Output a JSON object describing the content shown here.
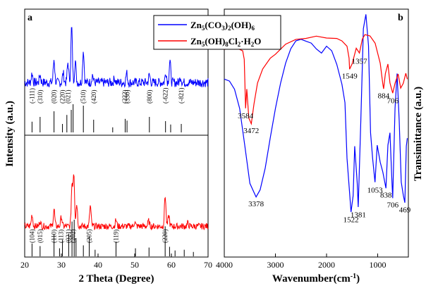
{
  "chart_data": [
    {
      "panel": "a",
      "type": "line",
      "xlabel": "2 Theta (Degree)",
      "ylabel": "Intensity (a.u.)",
      "xlim": [
        20,
        70
      ],
      "x_ticks": [
        20,
        30,
        40,
        50,
        60,
        70
      ],
      "x_tick_labels": [
        "20",
        "30",
        "40",
        "50",
        "60",
        "70"
      ],
      "grid": false,
      "legend_position": "top-right",
      "series": [
        {
          "name": "Zn5(CO3)2(OH)6",
          "color": "#0000ff",
          "baseline": 0.28,
          "peaks": [
            {
              "x": 22.0,
              "h": 0.12
            },
            {
              "x": 24.2,
              "h": 0.1
            },
            {
              "x": 28.0,
              "h": 0.3
            },
            {
              "x": 30.5,
              "h": 0.12
            },
            {
              "x": 31.8,
              "h": 0.26
            },
            {
              "x": 32.8,
              "h": 0.72
            },
            {
              "x": 33.8,
              "h": 0.28
            },
            {
              "x": 36.0,
              "h": 0.42
            },
            {
              "x": 38.5,
              "h": 0.1
            },
            {
              "x": 44.5,
              "h": 0.06
            },
            {
              "x": 47.8,
              "h": 0.12
            },
            {
              "x": 54.0,
              "h": 0.1
            },
            {
              "x": 58.5,
              "h": 0.14
            },
            {
              "x": 59.6,
              "h": 0.28
            },
            {
              "x": 62.5,
              "h": 0.08
            }
          ]
        },
        {
          "name": "Zn5(OH)8Cl2·H2O",
          "color": "#ff0000",
          "baseline": 0.22,
          "peaks": [
            {
              "x": 22.0,
              "h": 0.22
            },
            {
              "x": 24.2,
              "h": 0.1
            },
            {
              "x": 28.0,
              "h": 0.32
            },
            {
              "x": 30.0,
              "h": 0.18
            },
            {
              "x": 32.9,
              "h": 0.78
            },
            {
              "x": 33.4,
              "h": 0.98
            },
            {
              "x": 34.2,
              "h": 0.42
            },
            {
              "x": 37.9,
              "h": 0.38
            },
            {
              "x": 44.9,
              "h": 0.12
            },
            {
              "x": 50.0,
              "h": 0.08
            },
            {
              "x": 53.8,
              "h": 0.1
            },
            {
              "x": 58.3,
              "h": 0.58
            },
            {
              "x": 59.3,
              "h": 0.2
            },
            {
              "x": 64.5,
              "h": 0.06
            }
          ]
        }
      ],
      "reference_lines_carbonate": {
        "ticks": [
          {
            "x": 22.0,
            "h": 0.38
          },
          {
            "x": 24.2,
            "h": 0.55
          },
          {
            "x": 28.0,
            "h": 0.75
          },
          {
            "x": 30.3,
            "h": 0.3
          },
          {
            "x": 31.5,
            "h": 0.62
          },
          {
            "x": 32.7,
            "h": 0.8
          },
          {
            "x": 33.2,
            "h": 1.0
          },
          {
            "x": 36.0,
            "h": 0.95
          },
          {
            "x": 38.8,
            "h": 0.45
          },
          {
            "x": 44.0,
            "h": 0.18
          },
          {
            "x": 47.4,
            "h": 0.48
          },
          {
            "x": 47.9,
            "h": 0.42
          },
          {
            "x": 54.0,
            "h": 0.55
          },
          {
            "x": 58.4,
            "h": 0.4
          },
          {
            "x": 59.8,
            "h": 0.28
          },
          {
            "x": 62.7,
            "h": 0.3
          }
        ],
        "labels": [
          {
            "x": 22.0,
            "text": "(-111)"
          },
          {
            "x": 24.2,
            "text": "(310)"
          },
          {
            "x": 28.0,
            "text": "(020)"
          },
          {
            "x": 30.3,
            "text": "(220)"
          },
          {
            "x": 31.8,
            "text": "(021)"
          },
          {
            "x": 36.0,
            "text": "(510)"
          },
          {
            "x": 38.8,
            "text": "(420)"
          },
          {
            "x": 47.3,
            "text": "(222)"
          },
          {
            "x": 48.0,
            "text": "(330)"
          },
          {
            "x": 54.0,
            "text": "(800)"
          },
          {
            "x": 58.4,
            "text": "(-622)"
          },
          {
            "x": 62.7,
            "text": "(-821)"
          }
        ]
      },
      "reference_lines_chloride": {
        "ticks": [
          {
            "x": 22.0,
            "h": 0.35
          },
          {
            "x": 24.2,
            "h": 0.28
          },
          {
            "x": 28.0,
            "h": 0.6
          },
          {
            "x": 29.5,
            "h": 0.22
          },
          {
            "x": 30.3,
            "h": 0.45
          },
          {
            "x": 32.0,
            "h": 0.62
          },
          {
            "x": 32.9,
            "h": 0.95
          },
          {
            "x": 33.5,
            "h": 1.0
          },
          {
            "x": 34.0,
            "h": 0.5
          },
          {
            "x": 36.0,
            "h": 0.3
          },
          {
            "x": 37.6,
            "h": 0.55
          },
          {
            "x": 39.2,
            "h": 0.18
          },
          {
            "x": 44.9,
            "h": 0.4
          },
          {
            "x": 50.2,
            "h": 0.22
          },
          {
            "x": 53.9,
            "h": 0.24
          },
          {
            "x": 58.3,
            "h": 0.82
          },
          {
            "x": 59.5,
            "h": 0.26
          },
          {
            "x": 61.0,
            "h": 0.16
          },
          {
            "x": 63.5,
            "h": 0.18
          },
          {
            "x": 66.0,
            "h": 0.12
          }
        ],
        "labels": [
          {
            "x": 22.0,
            "text": "(104)"
          },
          {
            "x": 24.2,
            "text": "(015)"
          },
          {
            "x": 28.0,
            "text": "(110)"
          },
          {
            "x": 29.9,
            "text": "(113)"
          },
          {
            "x": 31.9,
            "text": "(021)"
          },
          {
            "x": 33.2,
            "text": "(202)"
          },
          {
            "x": 37.6,
            "text": "(205)"
          },
          {
            "x": 44.9,
            "text": "(119)"
          },
          {
            "x": 58.3,
            "text": "(220)"
          }
        ]
      }
    },
    {
      "panel": "b",
      "type": "line",
      "xlabel": "Wavenumber(cm",
      "xlabel_sup": "-1",
      "xlabel_end": ")",
      "ylabel": "Transimittance (a.u.)",
      "xlim": [
        4000,
        400
      ],
      "x_ticks": [
        4000,
        3000,
        2000,
        1000
      ],
      "x_tick_labels": [
        "4000",
        "3000",
        "2000",
        "1000"
      ],
      "grid": false,
      "series": [
        {
          "name": "Zn5(CO3)2(OH)6",
          "color": "#0000ff",
          "points": [
            [
              4000,
              0.72
            ],
            [
              3900,
              0.71
            ],
            [
              3800,
              0.68
            ],
            [
              3700,
              0.6
            ],
            [
              3600,
              0.45
            ],
            [
              3500,
              0.3
            ],
            [
              3400,
              0.25
            ],
            [
              3378,
              0.245
            ],
            [
              3300,
              0.27
            ],
            [
              3200,
              0.36
            ],
            [
              3100,
              0.48
            ],
            [
              3000,
              0.6
            ],
            [
              2900,
              0.7
            ],
            [
              2800,
              0.78
            ],
            [
              2700,
              0.84
            ],
            [
              2600,
              0.87
            ],
            [
              2500,
              0.88
            ],
            [
              2400,
              0.87
            ],
            [
              2300,
              0.86
            ],
            [
              2200,
              0.84
            ],
            [
              2100,
              0.82
            ],
            [
              2000,
              0.85
            ],
            [
              1900,
              0.83
            ],
            [
              1800,
              0.78
            ],
            [
              1700,
              0.7
            ],
            [
              1640,
              0.62
            ],
            [
              1600,
              0.4
            ],
            [
              1522,
              0.18
            ],
            [
              1480,
              0.25
            ],
            [
              1450,
              0.45
            ],
            [
              1400,
              0.3
            ],
            [
              1381,
              0.2
            ],
            [
              1330,
              0.55
            ],
            [
              1280,
              0.92
            ],
            [
              1230,
              0.98
            ],
            [
              1180,
              0.85
            ],
            [
              1140,
              0.5
            ],
            [
              1100,
              0.4
            ],
            [
              1053,
              0.3
            ],
            [
              1010,
              0.45
            ],
            [
              950,
              0.38
            ],
            [
              900,
              0.34
            ],
            [
              838,
              0.28
            ],
            [
              800,
              0.45
            ],
            [
              760,
              0.5
            ],
            [
              720,
              0.3
            ],
            [
              706,
              0.24
            ],
            [
              660,
              0.6
            ],
            [
              620,
              0.74
            ],
            [
              580,
              0.55
            ],
            [
              540,
              0.3
            ],
            [
              500,
              0.25
            ],
            [
              469,
              0.22
            ],
            [
              440,
              0.45
            ],
            [
              420,
              0.48
            ]
          ],
          "peak_labels": [
            {
              "x": 3378,
              "text": "3378"
            },
            {
              "x": 1522,
              "text": "1522"
            },
            {
              "x": 1381,
              "text": "1381"
            },
            {
              "x": 1053,
              "text": "1053"
            },
            {
              "x": 838,
              "text": "838"
            },
            {
              "x": 706,
              "text": "706"
            },
            {
              "x": 469,
              "text": "469"
            }
          ]
        },
        {
          "name": "Zn5(OH)8Cl2·H2O",
          "color": "#ff0000",
          "points": [
            [
              4000,
              0.84
            ],
            [
              3900,
              0.845
            ],
            [
              3800,
              0.84
            ],
            [
              3700,
              0.835
            ],
            [
              3640,
              0.83
            ],
            [
              3610,
              0.8
            ],
            [
              3584,
              0.6
            ],
            [
              3560,
              0.68
            ],
            [
              3520,
              0.56
            ],
            [
              3472,
              0.54
            ],
            [
              3420,
              0.62
            ],
            [
              3350,
              0.7
            ],
            [
              3250,
              0.76
            ],
            [
              3100,
              0.8
            ],
            [
              3000,
              0.82
            ],
            [
              2800,
              0.86
            ],
            [
              2600,
              0.88
            ],
            [
              2400,
              0.885
            ],
            [
              2200,
              0.89
            ],
            [
              2000,
              0.885
            ],
            [
              1800,
              0.88
            ],
            [
              1700,
              0.87
            ],
            [
              1600,
              0.85
            ],
            [
              1560,
              0.8
            ],
            [
              1549,
              0.76
            ],
            [
              1500,
              0.78
            ],
            [
              1420,
              0.84
            ],
            [
              1357,
              0.82
            ],
            [
              1300,
              0.88
            ],
            [
              1250,
              0.9
            ],
            [
              1150,
              0.89
            ],
            [
              1050,
              0.86
            ],
            [
              950,
              0.78
            ],
            [
              900,
              0.7
            ],
            [
              884,
              0.68
            ],
            [
              850,
              0.74
            ],
            [
              800,
              0.78
            ],
            [
              760,
              0.7
            ],
            [
              706,
              0.66
            ],
            [
              660,
              0.7
            ],
            [
              600,
              0.74
            ],
            [
              550,
              0.68
            ],
            [
              500,
              0.7
            ],
            [
              450,
              0.74
            ],
            [
              420,
              0.72
            ]
          ],
          "peak_labels": [
            {
              "x": 3584,
              "text": "3584"
            },
            {
              "x": 3472,
              "text": "3472"
            },
            {
              "x": 1549,
              "text": "1549"
            },
            {
              "x": 1357,
              "text": "1357"
            },
            {
              "x": 884,
              "text": "884"
            },
            {
              "x": 706,
              "text": "706"
            }
          ]
        }
      ]
    }
  ],
  "panel_labels": {
    "a": "a",
    "b": "b"
  },
  "legend": {
    "carbonate_parts": [
      "Zn",
      "5",
      "(CO",
      "3",
      ")",
      "2",
      "(OH)",
      "6"
    ],
    "chloride_parts": [
      "Zn",
      "5",
      "(OH)",
      "8",
      "Cl",
      "2",
      "·H",
      "2",
      "O"
    ]
  }
}
